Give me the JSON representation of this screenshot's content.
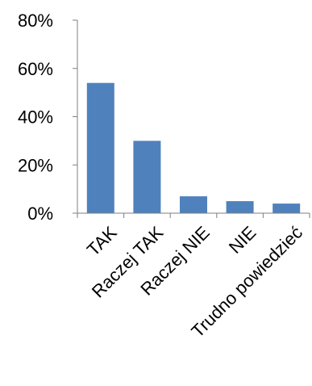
{
  "chart_data": {
    "type": "bar",
    "title": "",
    "xlabel": "",
    "ylabel": "",
    "categories": [
      "TAK",
      "Raczej TAK",
      "Raczej NIE",
      "NIE",
      "Trudno powiedzieć"
    ],
    "values": [
      54,
      30,
      7,
      5,
      4
    ],
    "ylim": [
      0,
      80
    ],
    "yticks": [
      0,
      20,
      40,
      60,
      80
    ],
    "ytick_labels": [
      "0%",
      "20%",
      "40%",
      "60%",
      "80%"
    ],
    "bar_color": "#4f81bd",
    "axis_color": "#7f7f7f",
    "grid": false,
    "legend": "none"
  }
}
